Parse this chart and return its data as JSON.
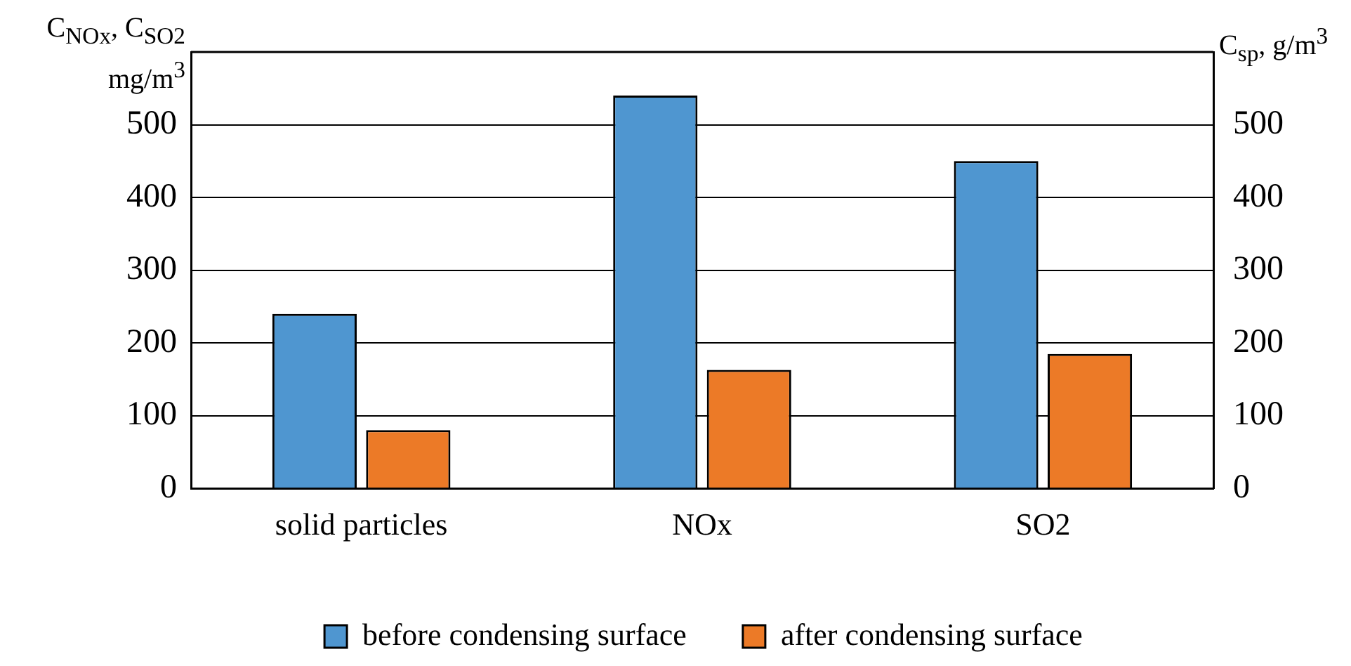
{
  "chart_data": {
    "type": "bar",
    "ylabel": "C$_{NOx}$, C$_{SO2}$ mg/m$^{3}$",
    "y2label": "C$_{sp}$, g/m$^{3}$",
    "categories": [
      "solid particles",
      "NOx",
      "SO2"
    ],
    "series": [
      {
        "name": "before condensing surface",
        "color": "#4f96d0",
        "values": [
          240,
          540,
          450
        ]
      },
      {
        "name": "after condensing surface",
        "color": "#ec7a27",
        "values": [
          80,
          163,
          185
        ]
      }
    ],
    "ylim": [
      0,
      600
    ],
    "yticks": [
      0,
      100,
      200,
      300,
      400,
      500
    ],
    "y2lim": [
      0,
      600
    ],
    "y2ticks": [
      0,
      100,
      200,
      300,
      400,
      500
    ],
    "grid": "y",
    "legend": "bottom"
  }
}
